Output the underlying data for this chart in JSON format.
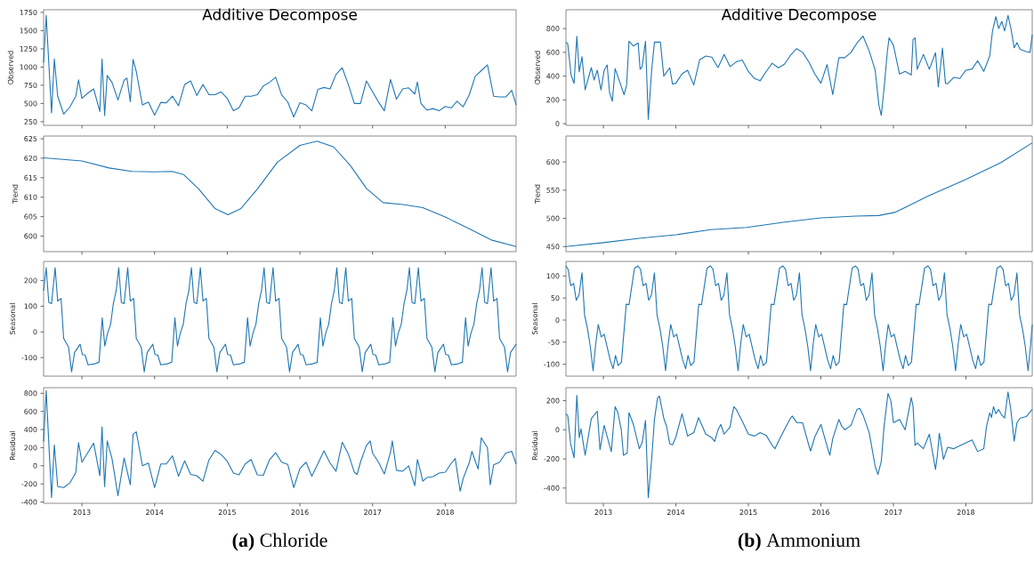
{
  "chart_data": [
    {
      "type": "line",
      "title": "Additive Decompose",
      "ylabel": "Observed",
      "color": "#1f77b4",
      "tick_labels": "y",
      "xlim": [
        "2012-06-22",
        "2018-12-23"
      ],
      "xticks": [
        "2013",
        "2014",
        "2015",
        "2016",
        "2017",
        "2018"
      ],
      "ylim": [
        200,
        1786
      ],
      "yticks": [
        250,
        500,
        750,
        1000,
        1250,
        1500,
        1750
      ],
      "x": [
        "2012-06-22",
        "2012-07-05",
        "2012-08-01",
        "2012-08-15",
        "2012-09-01",
        "2012-10-01",
        "2012-11-01",
        "2012-12-01",
        "2012-12-15",
        "2013-01-01",
        "2013-02-01",
        "2013-03-01",
        "2013-04-01",
        "2013-04-12",
        "2013-04-25",
        "2013-05-08",
        "2013-06-01",
        "2013-07-01",
        "2013-08-01",
        "2013-08-15",
        "2013-09-01",
        "2013-09-15",
        "2013-10-01",
        "2013-11-01",
        "2013-12-01",
        "2014-01-01",
        "2014-02-01",
        "2014-03-01",
        "2014-04-01",
        "2014-05-01",
        "2014-06-01",
        "2014-07-01",
        "2014-08-01",
        "2014-09-01",
        "2014-10-01",
        "2014-11-01",
        "2014-12-01",
        "2015-01-01",
        "2015-02-01",
        "2015-03-01",
        "2015-04-01",
        "2015-05-01",
        "2015-06-01",
        "2015-07-01",
        "2015-08-01",
        "2015-09-01",
        "2015-10-01",
        "2015-11-01",
        "2015-12-01",
        "2016-01-01",
        "2016-02-01",
        "2016-03-01",
        "2016-04-01",
        "2016-05-01",
        "2016-06-01",
        "2016-07-01",
        "2016-08-01",
        "2016-09-01",
        "2016-10-01",
        "2016-11-01",
        "2016-12-01",
        "2017-01-01",
        "2017-02-01",
        "2017-03-01",
        "2017-04-01",
        "2017-05-01",
        "2017-06-01",
        "2017-07-01",
        "2017-08-01",
        "2017-08-14",
        "2017-09-01",
        "2017-10-01",
        "2017-11-01",
        "2017-12-01",
        "2018-01-01",
        "2018-02-01",
        "2018-03-01",
        "2018-04-01",
        "2018-05-01",
        "2018-06-01",
        "2018-07-01",
        "2018-08-01",
        "2018-09-01",
        "2018-10-01",
        "2018-11-01",
        "2018-12-01",
        "2018-12-23"
      ],
      "values": [
        1060,
        1710,
        370,
        1110,
        600,
        355,
        450,
        600,
        825,
        570,
        645,
        700,
        390,
        1110,
        335,
        885,
        790,
        550,
        820,
        850,
        525,
        1105,
        940,
        480,
        520,
        340,
        515,
        510,
        600,
        470,
        760,
        810,
        610,
        760,
        620,
        620,
        660,
        570,
        400,
        440,
        600,
        600,
        620,
        740,
        790,
        860,
        620,
        520,
        315,
        510,
        480,
        400,
        695,
        720,
        700,
        900,
        990,
        760,
        500,
        500,
        810,
        660,
        515,
        400,
        830,
        560,
        700,
        715,
        630,
        795,
        500,
        410,
        430,
        400,
        460,
        440,
        530,
        455,
        615,
        875,
        950,
        1030,
        600,
        590,
        590,
        680,
        480
      ]
    },
    {
      "type": "line",
      "ylabel": "Trend",
      "color": "#1f77b4",
      "tick_labels": "y",
      "xlim": [
        "2012-06-22",
        "2018-12-23"
      ],
      "xticks": [
        "2013",
        "2014",
        "2015",
        "2016",
        "2017",
        "2018"
      ],
      "ylim": [
        596,
        625.7
      ],
      "yticks": [
        600,
        605,
        610,
        615,
        620,
        625
      ],
      "x": [
        "2012-06-22",
        "2013-01-01",
        "2013-05-17",
        "2013-09-10",
        "2014-01-01",
        "2014-03-29",
        "2014-05-27",
        "2014-08-09",
        "2014-10-31",
        "2015-01-05",
        "2015-03-11",
        "2015-06-03",
        "2015-09-10",
        "2016-01-01",
        "2016-03-27",
        "2016-06-19",
        "2016-09-10",
        "2016-12-02",
        "2017-02-23",
        "2017-06-03",
        "2017-09-10",
        "2018-01-01",
        "2018-04-27",
        "2018-08-20",
        "2018-12-23"
      ],
      "values": [
        620.1,
        619.3,
        617.5,
        616.6,
        616.5,
        616.6,
        615.8,
        612.2,
        607.1,
        605.5,
        607.1,
        612.2,
        619.0,
        623.3,
        624.4,
        622.9,
        618.2,
        612.2,
        608.6,
        608.1,
        607.3,
        604.9,
        602.0,
        599.0,
        597.3
      ]
    },
    {
      "type": "line",
      "ylabel": "Seasonal",
      "color": "#1f77b4",
      "tick_labels": "y",
      "xlim": [
        "2012-06-22",
        "2018-12-23"
      ],
      "xticks": [
        "2013",
        "2014",
        "2015",
        "2016",
        "2017",
        "2018"
      ],
      "ylim": [
        -172,
        274
      ],
      "yticks": [
        -100,
        0,
        100,
        200
      ],
      "x": [
        "2012-06-22",
        "2012-07-05",
        "2012-07-18",
        "2012-08-01",
        "2012-08-19",
        "2012-09-01",
        "2012-09-18",
        "2012-10-01",
        "2012-10-26",
        "2012-11-10",
        "2012-11-25",
        "2012-12-23",
        "2013-01-03",
        "2013-01-17",
        "2013-02-01",
        "2013-03-01",
        "2013-03-28",
        "2013-04-13",
        "2013-04-26",
        "2013-05-10",
        "2013-05-25",
        "2013-06-08",
        "2013-06-22",
        "2013-07-05",
        "2013-07-18",
        "2013-08-01",
        "2013-08-19",
        "2013-09-01",
        "2013-09-18",
        "2013-10-01",
        "2013-10-26",
        "2013-11-10",
        "2013-11-25",
        "2013-12-23",
        "2014-01-03",
        "2014-01-17",
        "2014-02-01",
        "2014-03-01",
        "2014-03-28",
        "2014-04-13",
        "2014-04-26",
        "2014-05-10",
        "2014-05-25",
        "2014-06-08",
        "2014-06-22",
        "2014-07-05",
        "2014-07-18",
        "2014-08-01",
        "2014-08-19",
        "2014-09-01",
        "2014-09-18",
        "2014-10-01",
        "2014-10-26",
        "2014-11-10",
        "2014-11-25",
        "2014-12-23",
        "2015-01-03",
        "2015-01-17",
        "2015-02-01",
        "2015-03-01",
        "2015-03-28",
        "2015-04-13",
        "2015-04-26",
        "2015-05-10",
        "2015-05-25",
        "2015-06-08",
        "2015-06-22",
        "2015-07-05",
        "2015-07-18",
        "2015-08-01",
        "2015-08-19",
        "2015-09-01",
        "2015-09-18",
        "2015-10-01",
        "2015-10-26",
        "2015-11-10",
        "2015-11-25",
        "2015-12-23",
        "2016-01-03",
        "2016-01-17",
        "2016-02-01",
        "2016-03-01",
        "2016-03-28",
        "2016-04-13",
        "2016-04-26",
        "2016-05-10",
        "2016-05-25",
        "2016-06-08",
        "2016-06-22",
        "2016-07-05",
        "2016-07-18",
        "2016-08-01",
        "2016-08-19",
        "2016-09-01",
        "2016-09-18",
        "2016-10-01",
        "2016-10-26",
        "2016-11-10",
        "2016-11-25",
        "2016-12-23",
        "2017-01-03",
        "2017-01-17",
        "2017-02-01",
        "2017-03-01",
        "2017-03-28",
        "2017-04-13",
        "2017-04-26",
        "2017-05-10",
        "2017-05-25",
        "2017-06-08",
        "2017-06-22",
        "2017-07-05",
        "2017-07-18",
        "2017-08-01",
        "2017-08-19",
        "2017-09-01",
        "2017-09-18",
        "2017-10-01",
        "2017-10-26",
        "2017-11-10",
        "2017-11-25",
        "2017-12-23",
        "2018-01-03",
        "2018-01-17",
        "2018-02-01",
        "2018-03-01",
        "2018-03-28",
        "2018-04-13",
        "2018-04-26",
        "2018-05-10",
        "2018-05-25",
        "2018-06-08",
        "2018-06-22",
        "2018-07-05",
        "2018-07-18",
        "2018-08-01",
        "2018-08-19",
        "2018-09-01",
        "2018-09-18",
        "2018-10-01",
        "2018-10-26",
        "2018-11-10",
        "2018-11-25",
        "2018-12-23"
      ],
      "values": [
        160,
        250,
        115,
        110,
        250,
        120,
        130,
        -25,
        -60,
        -155,
        -80,
        -48,
        -88,
        -90,
        -128,
        -125,
        -118,
        55,
        -55,
        -5,
        30,
        110,
        160,
        250,
        115,
        110,
        250,
        120,
        130,
        -25,
        -60,
        -155,
        -80,
        -48,
        -88,
        -90,
        -128,
        -125,
        -118,
        55,
        -55,
        -5,
        30,
        110,
        160,
        250,
        115,
        110,
        250,
        120,
        130,
        -25,
        -60,
        -155,
        -80,
        -48,
        -88,
        -90,
        -128,
        -125,
        -118,
        55,
        -55,
        -5,
        30,
        110,
        160,
        250,
        115,
        110,
        250,
        120,
        130,
        -25,
        -60,
        -155,
        -80,
        -48,
        -88,
        -90,
        -128,
        -125,
        -118,
        55,
        -55,
        -5,
        30,
        110,
        160,
        250,
        115,
        110,
        250,
        120,
        130,
        -25,
        -60,
        -155,
        -80,
        -48,
        -88,
        -90,
        -128,
        -125,
        -118,
        55,
        -55,
        -5,
        30,
        110,
        160,
        250,
        115,
        110,
        250,
        120,
        130,
        -25,
        -60,
        -155,
        -80,
        -48,
        -88,
        -90,
        -128,
        -125,
        -118,
        55,
        -55,
        -5,
        30,
        110,
        160,
        250,
        115,
        110,
        250,
        120,
        130,
        -25,
        -60,
        -155,
        -80,
        -48
      ]
    },
    {
      "type": "line",
      "ylabel": "Residual",
      "color": "#1f77b4",
      "annotations": [
        "**(a)** Chloride"
      ],
      "xlim": [
        "2012-06-22",
        "2018-12-23"
      ],
      "xticks": [
        "2013",
        "2014",
        "2015",
        "2016",
        "2017",
        "2018"
      ],
      "ylim": [
        -414,
        862
      ],
      "yticks": [
        -400,
        -200,
        0,
        200,
        400,
        600,
        800
      ],
      "x": [
        "2012-06-22",
        "2012-07-05",
        "2012-08-01",
        "2012-08-15",
        "2012-09-01",
        "2012-10-01",
        "2012-11-01",
        "2012-12-01",
        "2012-12-15",
        "2013-01-01",
        "2013-02-01",
        "2013-03-01",
        "2013-04-01",
        "2013-04-12",
        "2013-04-25",
        "2013-05-08",
        "2013-06-01",
        "2013-07-01",
        "2013-08-01",
        "2013-09-01",
        "2013-09-15",
        "2013-10-01",
        "2013-11-01",
        "2013-12-01",
        "2014-01-01",
        "2014-02-01",
        "2014-03-01",
        "2014-04-01",
        "2014-05-01",
        "2014-06-01",
        "2014-07-01",
        "2014-08-01",
        "2014-09-01",
        "2014-10-01",
        "2014-11-01",
        "2014-12-01",
        "2015-01-01",
        "2015-02-01",
        "2015-03-01",
        "2015-04-01",
        "2015-05-01",
        "2015-06-01",
        "2015-07-01",
        "2015-08-01",
        "2015-09-01",
        "2015-10-01",
        "2015-11-01",
        "2015-12-01",
        "2016-01-01",
        "2016-02-01",
        "2016-03-01",
        "2016-04-01",
        "2016-05-01",
        "2016-06-01",
        "2016-07-01",
        "2016-08-01",
        "2016-09-01",
        "2016-10-01",
        "2016-10-15",
        "2016-11-01",
        "2016-12-01",
        "2016-12-20",
        "2017-01-01",
        "2017-02-01",
        "2017-03-01",
        "2017-04-01",
        "2017-04-10",
        "2017-05-01",
        "2017-06-01",
        "2017-07-01",
        "2017-08-01",
        "2017-08-14",
        "2017-09-01",
        "2017-09-10",
        "2017-10-01",
        "2017-11-01",
        "2017-12-01",
        "2018-01-01",
        "2018-02-01",
        "2018-02-20",
        "2018-03-17",
        "2018-04-01",
        "2018-05-01",
        "2018-05-15",
        "2018-06-01",
        "2018-06-15",
        "2018-07-01",
        "2018-08-01",
        "2018-08-15",
        "2018-09-01",
        "2018-10-01",
        "2018-11-01",
        "2018-12-01",
        "2018-12-23"
      ],
      "values": [
        265,
        830,
        -350,
        230,
        -230,
        -240,
        -190,
        -75,
        255,
        40,
        150,
        250,
        -110,
        430,
        -230,
        275,
        80,
        -330,
        85,
        -210,
        350,
        375,
        0,
        30,
        -240,
        20,
        20,
        110,
        -115,
        55,
        -95,
        -110,
        -170,
        65,
        170,
        125,
        50,
        -80,
        -100,
        20,
        70,
        -100,
        -105,
        65,
        145,
        40,
        15,
        -240,
        -30,
        40,
        -115,
        25,
        165,
        30,
        -60,
        260,
        130,
        -70,
        -95,
        40,
        225,
        275,
        140,
        35,
        -90,
        150,
        275,
        -50,
        -60,
        0,
        -220,
        70,
        -80,
        -170,
        -130,
        -120,
        -80,
        -70,
        30,
        80,
        -280,
        -140,
        30,
        160,
        50,
        -35,
        310,
        200,
        -210,
        10,
        40,
        140,
        160,
        20
      ]
    },
    {
      "type": "line",
      "title": "Additive Decompose",
      "ylabel": "Observed",
      "color": "#1f77b4",
      "tick_labels": "y",
      "xlim": [
        "2012-06-26",
        "2018-12-01"
      ],
      "xticks": [
        "2013",
        "2014",
        "2015",
        "2016",
        "2017",
        "2018"
      ],
      "ylim": [
        -14,
        958
      ],
      "yticks": [
        0,
        200,
        400,
        600,
        800
      ],
      "x": [
        "2012-06-26",
        "2012-07-05",
        "2012-07-22",
        "2012-08-06",
        "2012-08-20",
        "2012-09-01",
        "2012-09-15",
        "2012-10-01",
        "2012-11-01",
        "2012-11-15",
        "2012-12-01",
        "2012-12-20",
        "2013-01-05",
        "2013-01-20",
        "2013-02-01",
        "2013-02-15",
        "2013-03-01",
        "2013-04-01",
        "2013-04-15",
        "2013-04-28",
        "2013-05-10",
        "2013-06-01",
        "2013-06-25",
        "2013-07-05",
        "2013-07-15",
        "2013-08-01",
        "2013-08-15",
        "2013-09-01",
        "2013-09-15",
        "2013-10-01",
        "2013-10-15",
        "2013-11-01",
        "2013-12-01",
        "2013-12-15",
        "2014-01-01",
        "2014-02-01",
        "2014-03-01",
        "2014-04-01",
        "2014-05-01",
        "2014-06-01",
        "2014-07-01",
        "2014-08-01",
        "2014-09-01",
        "2014-10-01",
        "2014-11-01",
        "2014-12-01",
        "2015-01-01",
        "2015-02-01",
        "2015-03-01",
        "2015-04-01",
        "2015-05-01",
        "2015-06-01",
        "2015-07-01",
        "2015-08-01",
        "2015-09-01",
        "2015-10-01",
        "2015-11-01",
        "2015-12-01",
        "2016-01-01",
        "2016-02-01",
        "2016-03-01",
        "2016-04-01",
        "2016-05-01",
        "2016-06-01",
        "2016-07-01",
        "2016-08-01",
        "2016-09-01",
        "2016-10-01",
        "2016-10-20",
        "2016-11-01",
        "2016-11-15",
        "2016-12-01",
        "2016-12-10",
        "2017-01-01",
        "2017-02-01",
        "2017-03-01",
        "2017-04-01",
        "2017-04-10",
        "2017-04-20",
        "2017-05-01",
        "2017-06-01",
        "2017-07-01",
        "2017-08-01",
        "2017-08-15",
        "2017-09-05",
        "2017-09-20",
        "2017-10-01",
        "2017-11-01",
        "2017-12-01",
        "2018-01-01",
        "2018-02-01",
        "2018-03-01",
        "2018-04-01",
        "2018-05-01",
        "2018-05-15",
        "2018-06-01",
        "2018-06-15",
        "2018-07-01",
        "2018-07-15",
        "2018-08-01",
        "2018-08-15",
        "2018-09-01",
        "2018-09-15",
        "2018-10-01",
        "2018-11-01",
        "2018-11-20",
        "2018-12-01"
      ],
      "values": [
        686,
        672,
        408,
        339,
        736,
        436,
        564,
        286,
        472,
        367,
        450,
        283,
        450,
        494,
        264,
        189,
        464,
        314,
        244,
        325,
        694,
        653,
        679,
        458,
        478,
        694,
        36,
        450,
        686,
        686,
        686,
        400,
        470,
        333,
        340,
        420,
        450,
        325,
        540,
        569,
        560,
        472,
        583,
        480,
        520,
        535,
        439,
        380,
        361,
        440,
        508,
        470,
        500,
        575,
        631,
        600,
        520,
        420,
        340,
        497,
        244,
        556,
        555,
        600,
        678,
        736,
        611,
        450,
        153,
        70,
        300,
        597,
        722,
        660,
        417,
        440,
        410,
        708,
        722,
        458,
        583,
        458,
        597,
        310,
        636,
        340,
        335,
        390,
        380,
        450,
        460,
        530,
        440,
        570,
        780,
        900,
        800,
        860,
        780,
        910,
        806,
        639,
        681,
        625,
        606,
        600,
        750
      ]
    },
    {
      "type": "line",
      "ylabel": "Trend",
      "color": "#1f77b4",
      "tick_labels": "y",
      "xlim": [
        "2012-06-26",
        "2018-12-01"
      ],
      "xticks": [
        "2013",
        "2014",
        "2015",
        "2016",
        "2017",
        "2018"
      ],
      "ylim": [
        441,
        646
      ],
      "yticks": [
        450,
        500,
        550,
        600
      ],
      "x": [
        "2012-06-26",
        "2013-01-01",
        "2013-07-10",
        "2014-01-01",
        "2014-06-25",
        "2014-12-24",
        "2015-06-25",
        "2016-01-02",
        "2016-06-25",
        "2016-10-19",
        "2017-01-12",
        "2017-06-27",
        "2018-01-01",
        "2018-06-27",
        "2018-12-01"
      ],
      "values": [
        450,
        457,
        465,
        471,
        480,
        484,
        493,
        501,
        504,
        505,
        511,
        540,
        569,
        599,
        634
      ]
    },
    {
      "type": "line",
      "ylabel": "Seasonal",
      "color": "#1f77b4",
      "tick_labels": "y",
      "xlim": [
        "2012-06-26",
        "2018-12-01"
      ],
      "xticks": [
        "2013",
        "2014",
        "2015",
        "2016",
        "2017",
        "2018"
      ],
      "ylim": [
        -127,
        133
      ],
      "yticks": [
        -100,
        -50,
        0,
        50,
        100
      ],
      "x": [
        "2012-06-26",
        "2012-07-07",
        "2012-07-20",
        "2012-08-04",
        "2012-08-17",
        "2012-08-31",
        "2012-09-15",
        "2012-09-28",
        "2012-10-13",
        "2012-10-27",
        "2012-11-10",
        "2012-11-23",
        "2012-12-06",
        "2012-12-21",
        "2013-01-05",
        "2013-02-04",
        "2013-02-19",
        "2013-03-03",
        "2013-03-17",
        "2013-04-02",
        "2013-04-26",
        "2013-05-10",
        "2013-06-07",
        "2013-06-24",
        "2013-07-07",
        "2013-07-20",
        "2013-08-04",
        "2013-08-17",
        "2013-08-31",
        "2013-09-15",
        "2013-09-28",
        "2013-10-13",
        "2013-10-27",
        "2013-11-10",
        "2013-11-23",
        "2013-12-06",
        "2013-12-21",
        "2014-01-05",
        "2014-02-04",
        "2014-02-19",
        "2014-03-03",
        "2014-03-17",
        "2014-04-02",
        "2014-04-26",
        "2014-05-10",
        "2014-06-07",
        "2014-06-24",
        "2014-07-07",
        "2014-07-20",
        "2014-08-04",
        "2014-08-17",
        "2014-08-31",
        "2014-09-15",
        "2014-09-28",
        "2014-10-13",
        "2014-10-27",
        "2014-11-10",
        "2014-11-23",
        "2014-12-06",
        "2014-12-21",
        "2015-01-05",
        "2015-02-04",
        "2015-02-19",
        "2015-03-03",
        "2015-03-17",
        "2015-04-02",
        "2015-04-26",
        "2015-05-10",
        "2015-06-07",
        "2015-06-24",
        "2015-07-07",
        "2015-07-20",
        "2015-08-04",
        "2015-08-17",
        "2015-08-31",
        "2015-09-15",
        "2015-09-28",
        "2015-10-13",
        "2015-10-27",
        "2015-11-10",
        "2015-11-23",
        "2015-12-06",
        "2015-12-21",
        "2016-01-05",
        "2016-02-04",
        "2016-02-19",
        "2016-03-03",
        "2016-03-17",
        "2016-04-02",
        "2016-04-26",
        "2016-05-10",
        "2016-06-07",
        "2016-06-24",
        "2016-07-07",
        "2016-07-20",
        "2016-08-04",
        "2016-08-17",
        "2016-08-31",
        "2016-09-15",
        "2016-09-28",
        "2016-10-13",
        "2016-10-27",
        "2016-11-10",
        "2016-11-23",
        "2016-12-06",
        "2016-12-21",
        "2017-01-05",
        "2017-02-04",
        "2017-02-19",
        "2017-03-03",
        "2017-03-17",
        "2017-04-02",
        "2017-04-26",
        "2017-05-10",
        "2017-06-07",
        "2017-06-24",
        "2017-07-07",
        "2017-07-20",
        "2017-08-04",
        "2017-08-17",
        "2017-08-31",
        "2017-09-15",
        "2017-09-28",
        "2017-10-13",
        "2017-10-27",
        "2017-11-10",
        "2017-11-23",
        "2017-12-06",
        "2017-12-21",
        "2018-01-05",
        "2018-02-04",
        "2018-02-19",
        "2018-03-03",
        "2018-03-17",
        "2018-04-02",
        "2018-04-26",
        "2018-05-10",
        "2018-06-07",
        "2018-06-24",
        "2018-07-07",
        "2018-07-20",
        "2018-08-04",
        "2018-08-17",
        "2018-08-31",
        "2018-09-15",
        "2018-09-28",
        "2018-10-13",
        "2018-10-27",
        "2018-11-10",
        "2018-11-23",
        "2018-12-01"
      ],
      "values": [
        123,
        115,
        78,
        83,
        45,
        57,
        107,
        12,
        -20,
        -60,
        -115,
        -55,
        -10,
        -38,
        -32,
        -90,
        -110,
        -80,
        -103,
        -95,
        36,
        35,
        118,
        123,
        115,
        78,
        83,
        45,
        57,
        107,
        12,
        -20,
        -60,
        -115,
        -55,
        -10,
        -38,
        -32,
        -90,
        -110,
        -80,
        -103,
        -95,
        36,
        35,
        118,
        123,
        115,
        78,
        83,
        45,
        57,
        107,
        12,
        -20,
        -60,
        -115,
        -55,
        -10,
        -38,
        -32,
        -90,
        -110,
        -80,
        -103,
        -95,
        36,
        35,
        118,
        123,
        115,
        78,
        83,
        45,
        57,
        107,
        12,
        -20,
        -60,
        -115,
        -55,
        -10,
        -38,
        -32,
        -90,
        -110,
        -80,
        -103,
        -95,
        36,
        35,
        118,
        123,
        115,
        78,
        83,
        45,
        57,
        107,
        12,
        -20,
        -60,
        -115,
        -55,
        -10,
        -38,
        -32,
        -90,
        -110,
        -80,
        -103,
        -95,
        36,
        35,
        118,
        123,
        115,
        78,
        83,
        45,
        57,
        107,
        12,
        -20,
        -60,
        -115,
        -55,
        -10,
        -38,
        -32,
        -90,
        -110,
        -80,
        -103,
        -95,
        36,
        35,
        118,
        123,
        115,
        78,
        83,
        45,
        57,
        107,
        12,
        -20,
        -60,
        -115,
        -55,
        -10
      ]
    },
    {
      "type": "line",
      "ylabel": "Residual",
      "color": "#1f77b4",
      "annotations": [
        "**(b)** Ammonium"
      ],
      "xlim": [
        "2012-06-26",
        "2018-12-01"
      ],
      "xticks": [
        "2013",
        "2014",
        "2015",
        "2016",
        "2017",
        "2018"
      ],
      "ylim": [
        -505,
        289
      ],
      "yticks": [
        -400,
        -200,
        0,
        200
      ],
      "x": [
        "2012-06-26",
        "2012-07-05",
        "2012-07-20",
        "2012-08-06",
        "2012-08-20",
        "2012-09-01",
        "2012-09-10",
        "2012-10-01",
        "2012-11-01",
        "2012-12-01",
        "2012-12-15",
        "2013-01-05",
        "2013-02-01",
        "2013-02-10",
        "2013-03-01",
        "2013-03-15",
        "2013-04-01",
        "2013-04-12",
        "2013-05-01",
        "2013-05-10",
        "2013-06-01",
        "2013-07-01",
        "2013-07-15",
        "2013-08-01",
        "2013-08-15",
        "2013-09-01",
        "2013-09-15",
        "2013-10-01",
        "2013-10-10",
        "2013-11-01",
        "2013-11-15",
        "2013-12-01",
        "2013-12-15",
        "2014-01-01",
        "2014-02-01",
        "2014-03-01",
        "2014-04-01",
        "2014-04-25",
        "2014-06-01",
        "2014-07-01",
        "2014-07-15",
        "2014-08-01",
        "2014-08-15",
        "2014-09-01",
        "2014-10-01",
        "2014-10-10",
        "2014-10-20",
        "2014-11-01",
        "2014-12-01",
        "2015-01-01",
        "2015-02-01",
        "2015-03-01",
        "2015-04-01",
        "2015-05-01",
        "2015-05-15",
        "2015-06-01",
        "2015-07-01",
        "2015-08-01",
        "2015-08-10",
        "2015-09-01",
        "2015-10-01",
        "2015-11-01",
        "2015-11-10",
        "2015-12-01",
        "2016-01-01",
        "2016-02-01",
        "2016-02-15",
        "2016-03-01",
        "2016-04-01",
        "2016-04-15",
        "2016-05-01",
        "2016-06-01",
        "2016-07-01",
        "2016-07-15",
        "2016-08-01",
        "2016-09-01",
        "2016-10-01",
        "2016-10-15",
        "2016-11-01",
        "2016-11-15",
        "2016-12-05",
        "2016-12-20",
        "2017-01-01",
        "2017-02-01",
        "2017-03-01",
        "2017-04-01",
        "2017-04-10",
        "2017-04-20",
        "2017-05-01",
        "2017-06-01",
        "2017-07-01",
        "2017-08-01",
        "2017-08-10",
        "2017-08-20",
        "2017-09-01",
        "2017-09-10",
        "2017-10-01",
        "2017-11-01",
        "2017-12-01",
        "2018-01-01",
        "2018-02-01",
        "2018-03-01",
        "2018-04-01",
        "2018-04-15",
        "2018-05-01",
        "2018-05-10",
        "2018-05-20",
        "2018-06-01",
        "2018-06-15",
        "2018-07-01",
        "2018-07-15",
        "2018-08-01",
        "2018-08-15",
        "2018-09-01",
        "2018-09-15",
        "2018-10-01",
        "2018-11-01",
        "2018-12-01"
      ],
      "values": [
        110,
        98,
        -100,
        -192,
        237,
        -55,
        7,
        -175,
        76,
        127,
        -137,
        30,
        -107,
        -150,
        159,
        118,
        0,
        -175,
        -160,
        118,
        37,
        -130,
        -90,
        64,
        -466,
        -203,
        71,
        220,
        232,
        80,
        25,
        -96,
        -103,
        -50,
        110,
        -43,
        -20,
        83,
        -30,
        -55,
        -80,
        0,
        37,
        -30,
        20,
        94,
        159,
        140,
        60,
        -30,
        -43,
        -20,
        -40,
        -107,
        -130,
        -80,
        0,
        80,
        94,
        50,
        48,
        -105,
        -146,
        -50,
        37,
        -112,
        -175,
        -60,
        71,
        25,
        0,
        30,
        140,
        147,
        100,
        -20,
        -250,
        -307,
        -215,
        25,
        250,
        195,
        50,
        70,
        0,
        221,
        163,
        -107,
        -90,
        -130,
        -30,
        -272,
        -181,
        -25,
        -120,
        -203,
        -120,
        -130,
        -110,
        -90,
        -70,
        -150,
        -130,
        25,
        116,
        85,
        159,
        110,
        140,
        100,
        80,
        260,
        140,
        -78,
        48,
        80,
        90,
        140
      ]
    }
  ]
}
